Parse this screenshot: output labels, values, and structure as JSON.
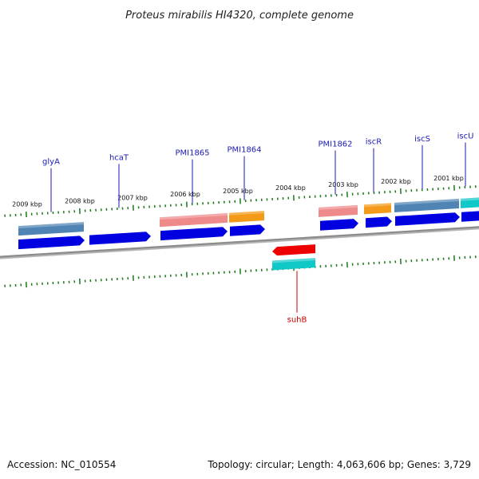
{
  "title": "Proteus mirabilis HI4320, complete genome",
  "footer": {
    "accession": "Accession: NC_010554",
    "summary": "Topology: circular; Length: 4,063,606 bp; Genes: 3,729"
  },
  "colors": {
    "background": "#ffffff",
    "backbone": "#8c8c8c",
    "tick": "#1a7a1a",
    "cds": "#0000e0",
    "gene_steelblue": "#4f84b4",
    "gene_salmon": "#ef8a8a",
    "gene_orange": "#f39a18",
    "gene_cyan": "#11c8c8",
    "gene_red": "#ee0000",
    "label_blue": "#1a1ab4",
    "label_red": "#c80000"
  },
  "kbp_labels": [
    "2009 kbp",
    "2008 kbp",
    "2007 kbp",
    "2006 kbp",
    "2005 kbp",
    "2004 kbp",
    "2003 kbp",
    "2002 kbp",
    "2001 kbp"
  ],
  "gene_labels": [
    "glyA",
    "hcaT",
    "PMI1865",
    "PMI1864",
    "PMI1862",
    "iscR",
    "iscS",
    "iscU"
  ],
  "reverse_labels": [
    "suhB"
  ],
  "strand_plus": {
    "genes": [
      "glyA",
      "hcaT",
      "PMI1865",
      "PMI1864",
      "PMI1862",
      "iscR",
      "iscS",
      "iscU"
    ]
  },
  "strand_minus": {
    "genes": [
      "suhB"
    ]
  }
}
